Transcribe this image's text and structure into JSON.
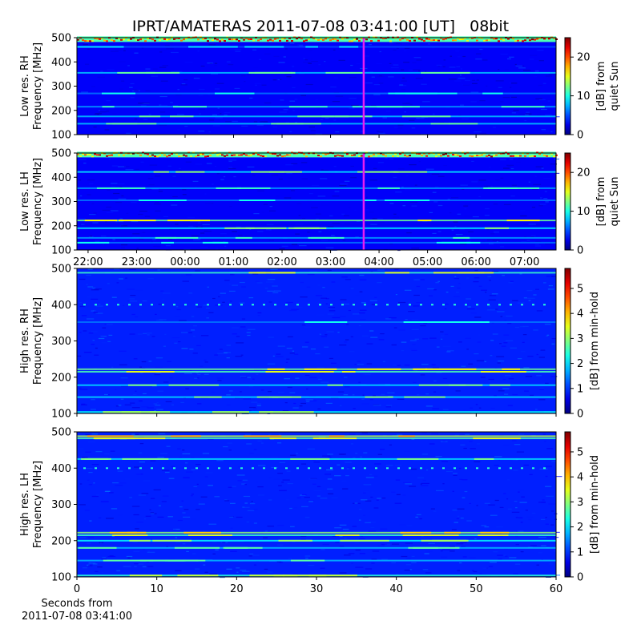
{
  "title": "IPRT/AMATERAS 2011-07-08 03:41:00 [UT]   08bit",
  "x_axis_label_line1": "Seconds from",
  "x_axis_label_line2": "2011-07-08 03:41:00",
  "colormap": "jet",
  "chart_data": [
    {
      "type": "heatmap",
      "panel": "low-res-rh",
      "ylabel": [
        "Low res. RH",
        "Frequency [MHz]"
      ],
      "ylim": [
        100,
        500
      ],
      "yticks": [
        100,
        200,
        300,
        400,
        500
      ],
      "xaxis": "UT time",
      "xrange_hours": [
        21.77,
        31.65
      ],
      "xtick_labels": [
        "22:00",
        "23:00",
        "00:00",
        "01:00",
        "02:00",
        "03:00",
        "04:00",
        "05:00",
        "06:00",
        "07:00"
      ],
      "xtick_labels_visible": false,
      "marker_time": "03:41",
      "marker_color": "#e81cf0",
      "colorbar": {
        "label": [
          "[dB] from",
          "quiet Sun"
        ],
        "min": 0,
        "max": 25,
        "ticks": [
          0,
          10,
          20
        ]
      },
      "features_mhz": [
        {
          "freq": 492,
          "level": 22,
          "note": "strong band at top"
        },
        {
          "freq": 462,
          "level": 5
        },
        {
          "freq": 355,
          "level": 8
        },
        {
          "freq": 270,
          "level": 6
        },
        {
          "freq": 215,
          "level": 7
        },
        {
          "freq": 175,
          "level": 8
        },
        {
          "freq": 145,
          "level": 8
        }
      ],
      "background_level": 3
    },
    {
      "type": "heatmap",
      "panel": "low-res-lh",
      "ylabel": [
        "Low res. LH",
        "Frequency [MHz]"
      ],
      "ylim": [
        100,
        500
      ],
      "yticks": [
        100,
        200,
        300,
        400,
        500
      ],
      "xaxis": "UT time",
      "xrange_hours": [
        21.77,
        31.65
      ],
      "xtick_labels": [
        "22:00",
        "23:00",
        "00:00",
        "01:00",
        "02:00",
        "03:00",
        "04:00",
        "05:00",
        "06:00",
        "07:00"
      ],
      "xtick_labels_visible": true,
      "marker_time": "03:41",
      "marker_color": "#e81cf0",
      "colorbar": {
        "label": [
          "[dB] from",
          "quiet Sun"
        ],
        "min": 0,
        "max": 25,
        "ticks": [
          0,
          10,
          20
        ]
      },
      "features_mhz": [
        {
          "freq": 492,
          "level": 22,
          "note": "strong band at top"
        },
        {
          "freq": 422,
          "level": 9
        },
        {
          "freq": 355,
          "level": 7
        },
        {
          "freq": 305,
          "level": 6
        },
        {
          "freq": 222,
          "level": 12
        },
        {
          "freq": 190,
          "level": 9
        },
        {
          "freq": 150,
          "level": 7
        },
        {
          "freq": 130,
          "level": 6
        }
      ],
      "background_level": 3
    },
    {
      "type": "heatmap",
      "panel": "high-res-rh",
      "ylabel": [
        "High res. RH",
        "Frequency [MHz]"
      ],
      "ylim": [
        100,
        500
      ],
      "yticks": [
        100,
        200,
        300,
        400,
        500
      ],
      "xlim": [
        0,
        60
      ],
      "xticks": [
        0,
        10,
        20,
        30,
        40,
        50,
        60
      ],
      "xtick_labels_visible": false,
      "colorbar": {
        "label": [
          "[dB] from min-hold"
        ],
        "min": 0,
        "max": 5.8,
        "ticks": [
          0,
          1,
          2,
          3,
          4,
          5
        ]
      },
      "features_mhz": [
        {
          "freq": 488,
          "level": 2.5
        },
        {
          "freq": 400,
          "level": 2.4,
          "note": "dotted"
        },
        {
          "freq": 352,
          "level": 1.4
        },
        {
          "freq": 222,
          "level": 2.8
        },
        {
          "freq": 215,
          "level": 2.6
        },
        {
          "freq": 178,
          "level": 2.0
        },
        {
          "freq": 145,
          "level": 2.0
        },
        {
          "freq": 104,
          "level": 2.2
        }
      ],
      "background_level": 0.9
    },
    {
      "type": "heatmap",
      "panel": "high-res-lh",
      "ylabel": [
        "High res. LH",
        "Frequency [MHz]"
      ],
      "ylim": [
        100,
        500
      ],
      "yticks": [
        100,
        200,
        300,
        400,
        500
      ],
      "xlim": [
        0,
        60
      ],
      "xticks": [
        0,
        10,
        20,
        30,
        40,
        50,
        60
      ],
      "xtick_labels_visible": true,
      "colorbar": {
        "label": [
          "[dB] from min-hold"
        ],
        "min": 0,
        "max": 5.8,
        "ticks": [
          0,
          1,
          2,
          3,
          4,
          5
        ]
      },
      "features_mhz": [
        {
          "freq": 488,
          "level": 3.2
        },
        {
          "freq": 482,
          "level": 2.6
        },
        {
          "freq": 425,
          "level": 2.0
        },
        {
          "freq": 400,
          "level": 2.4,
          "note": "dotted"
        },
        {
          "freq": 222,
          "level": 3.0
        },
        {
          "freq": 215,
          "level": 2.5
        },
        {
          "freq": 200,
          "level": 2.2
        },
        {
          "freq": 180,
          "level": 1.8
        },
        {
          "freq": 145,
          "level": 1.8
        },
        {
          "freq": 104,
          "level": 2.4
        }
      ],
      "background_level": 0.9
    }
  ]
}
